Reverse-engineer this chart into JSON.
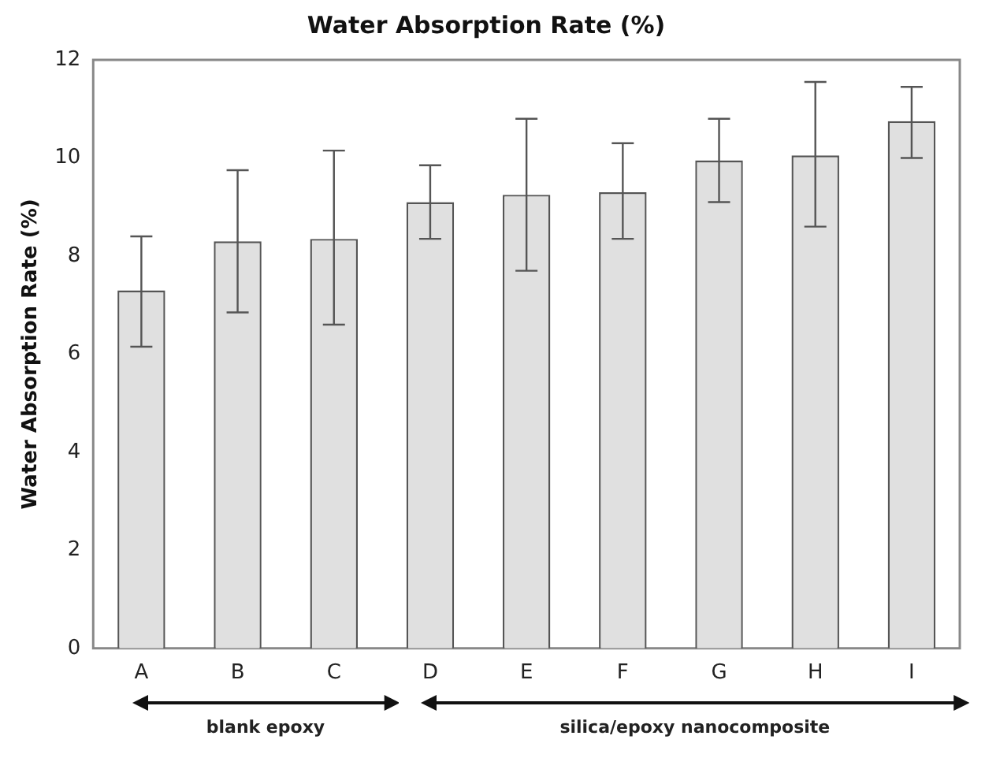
{
  "chart_data": {
    "type": "bar",
    "title": "Water Absorption Rate (%)",
    "ylabel": "Water Absorption Rate (%)",
    "categories": [
      "A",
      "B",
      "C",
      "D",
      "E",
      "F",
      "G",
      "H",
      "I"
    ],
    "values": [
      7.3,
      8.3,
      8.35,
      9.1,
      9.25,
      9.3,
      9.95,
      10.05,
      10.75
    ],
    "errors": [
      [
        6.15,
        8.4
      ],
      [
        6.85,
        9.75
      ],
      [
        6.6,
        10.15
      ],
      [
        8.35,
        9.85
      ],
      [
        7.7,
        10.8
      ],
      [
        8.35,
        10.3
      ],
      [
        9.1,
        10.8
      ],
      [
        8.6,
        11.55
      ],
      [
        10.0,
        11.45
      ]
    ],
    "color": "#e0e0e0",
    "ylim": [
      0,
      12
    ],
    "yticks": [
      0,
      2,
      4,
      6,
      8,
      10,
      12
    ],
    "grid": false,
    "legend": false,
    "annotations": [
      "blank epoxy",
      "silica/epoxy nanocomposite"
    ]
  }
}
